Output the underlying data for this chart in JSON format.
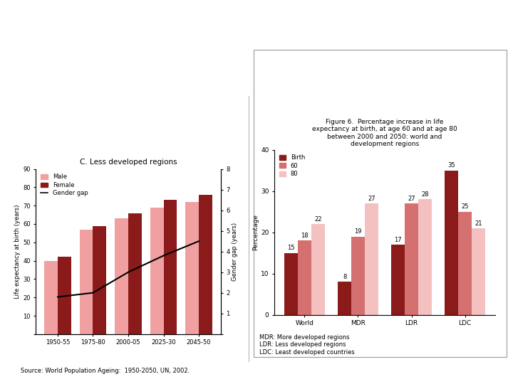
{
  "left": {
    "title": "C. Less developed regions",
    "categories": [
      "1950-55",
      "1975-80",
      "2000-05",
      "2025-30",
      "2045-50"
    ],
    "male": [
      40,
      57,
      63,
      69,
      72
    ],
    "female": [
      42,
      59,
      66,
      73,
      76
    ],
    "gender_gap": [
      1.8,
      2.0,
      3.0,
      3.8,
      4.5
    ],
    "male_color": "#f0a0a0",
    "female_color": "#8b1a1a",
    "ylabel_left": "Life expectancy at birth (years)",
    "ylabel_right": "Gender gap (years)",
    "ylim_left": [
      0,
      90
    ],
    "ylim_right": [
      0,
      8
    ],
    "yticks_left": [
      0,
      10,
      20,
      30,
      40,
      50,
      60,
      70,
      80,
      90
    ],
    "yticks_right": [
      0,
      1,
      2,
      3,
      4,
      5,
      6,
      7,
      8
    ]
  },
  "right": {
    "title": "Figure 6.  Percentage increase in life\nexpectancy at birth, at age 60 and at age 80\nbetween 2000 and 2050: world and\ndevelopment regions",
    "categories": [
      "World",
      "MDR",
      "LDR",
      "LDC"
    ],
    "birth": [
      15,
      8,
      17,
      35
    ],
    "age60": [
      18,
      19,
      27,
      25
    ],
    "age80": [
      22,
      27,
      28,
      21
    ],
    "birth_color": "#8b1a1a",
    "age60_color": "#d47070",
    "age80_color": "#f4c0c0",
    "ylabel": "Percentage",
    "ylim": [
      0,
      40
    ],
    "yticks": [
      0,
      10,
      20,
      30,
      40
    ],
    "footnote1": "MDR: More developed regions",
    "footnote2": "LDR: Less developed regions",
    "footnote3": "LDC: Least developed countries"
  },
  "source": "Source: World Population Ageing:  1950-2050, UN, 2002."
}
